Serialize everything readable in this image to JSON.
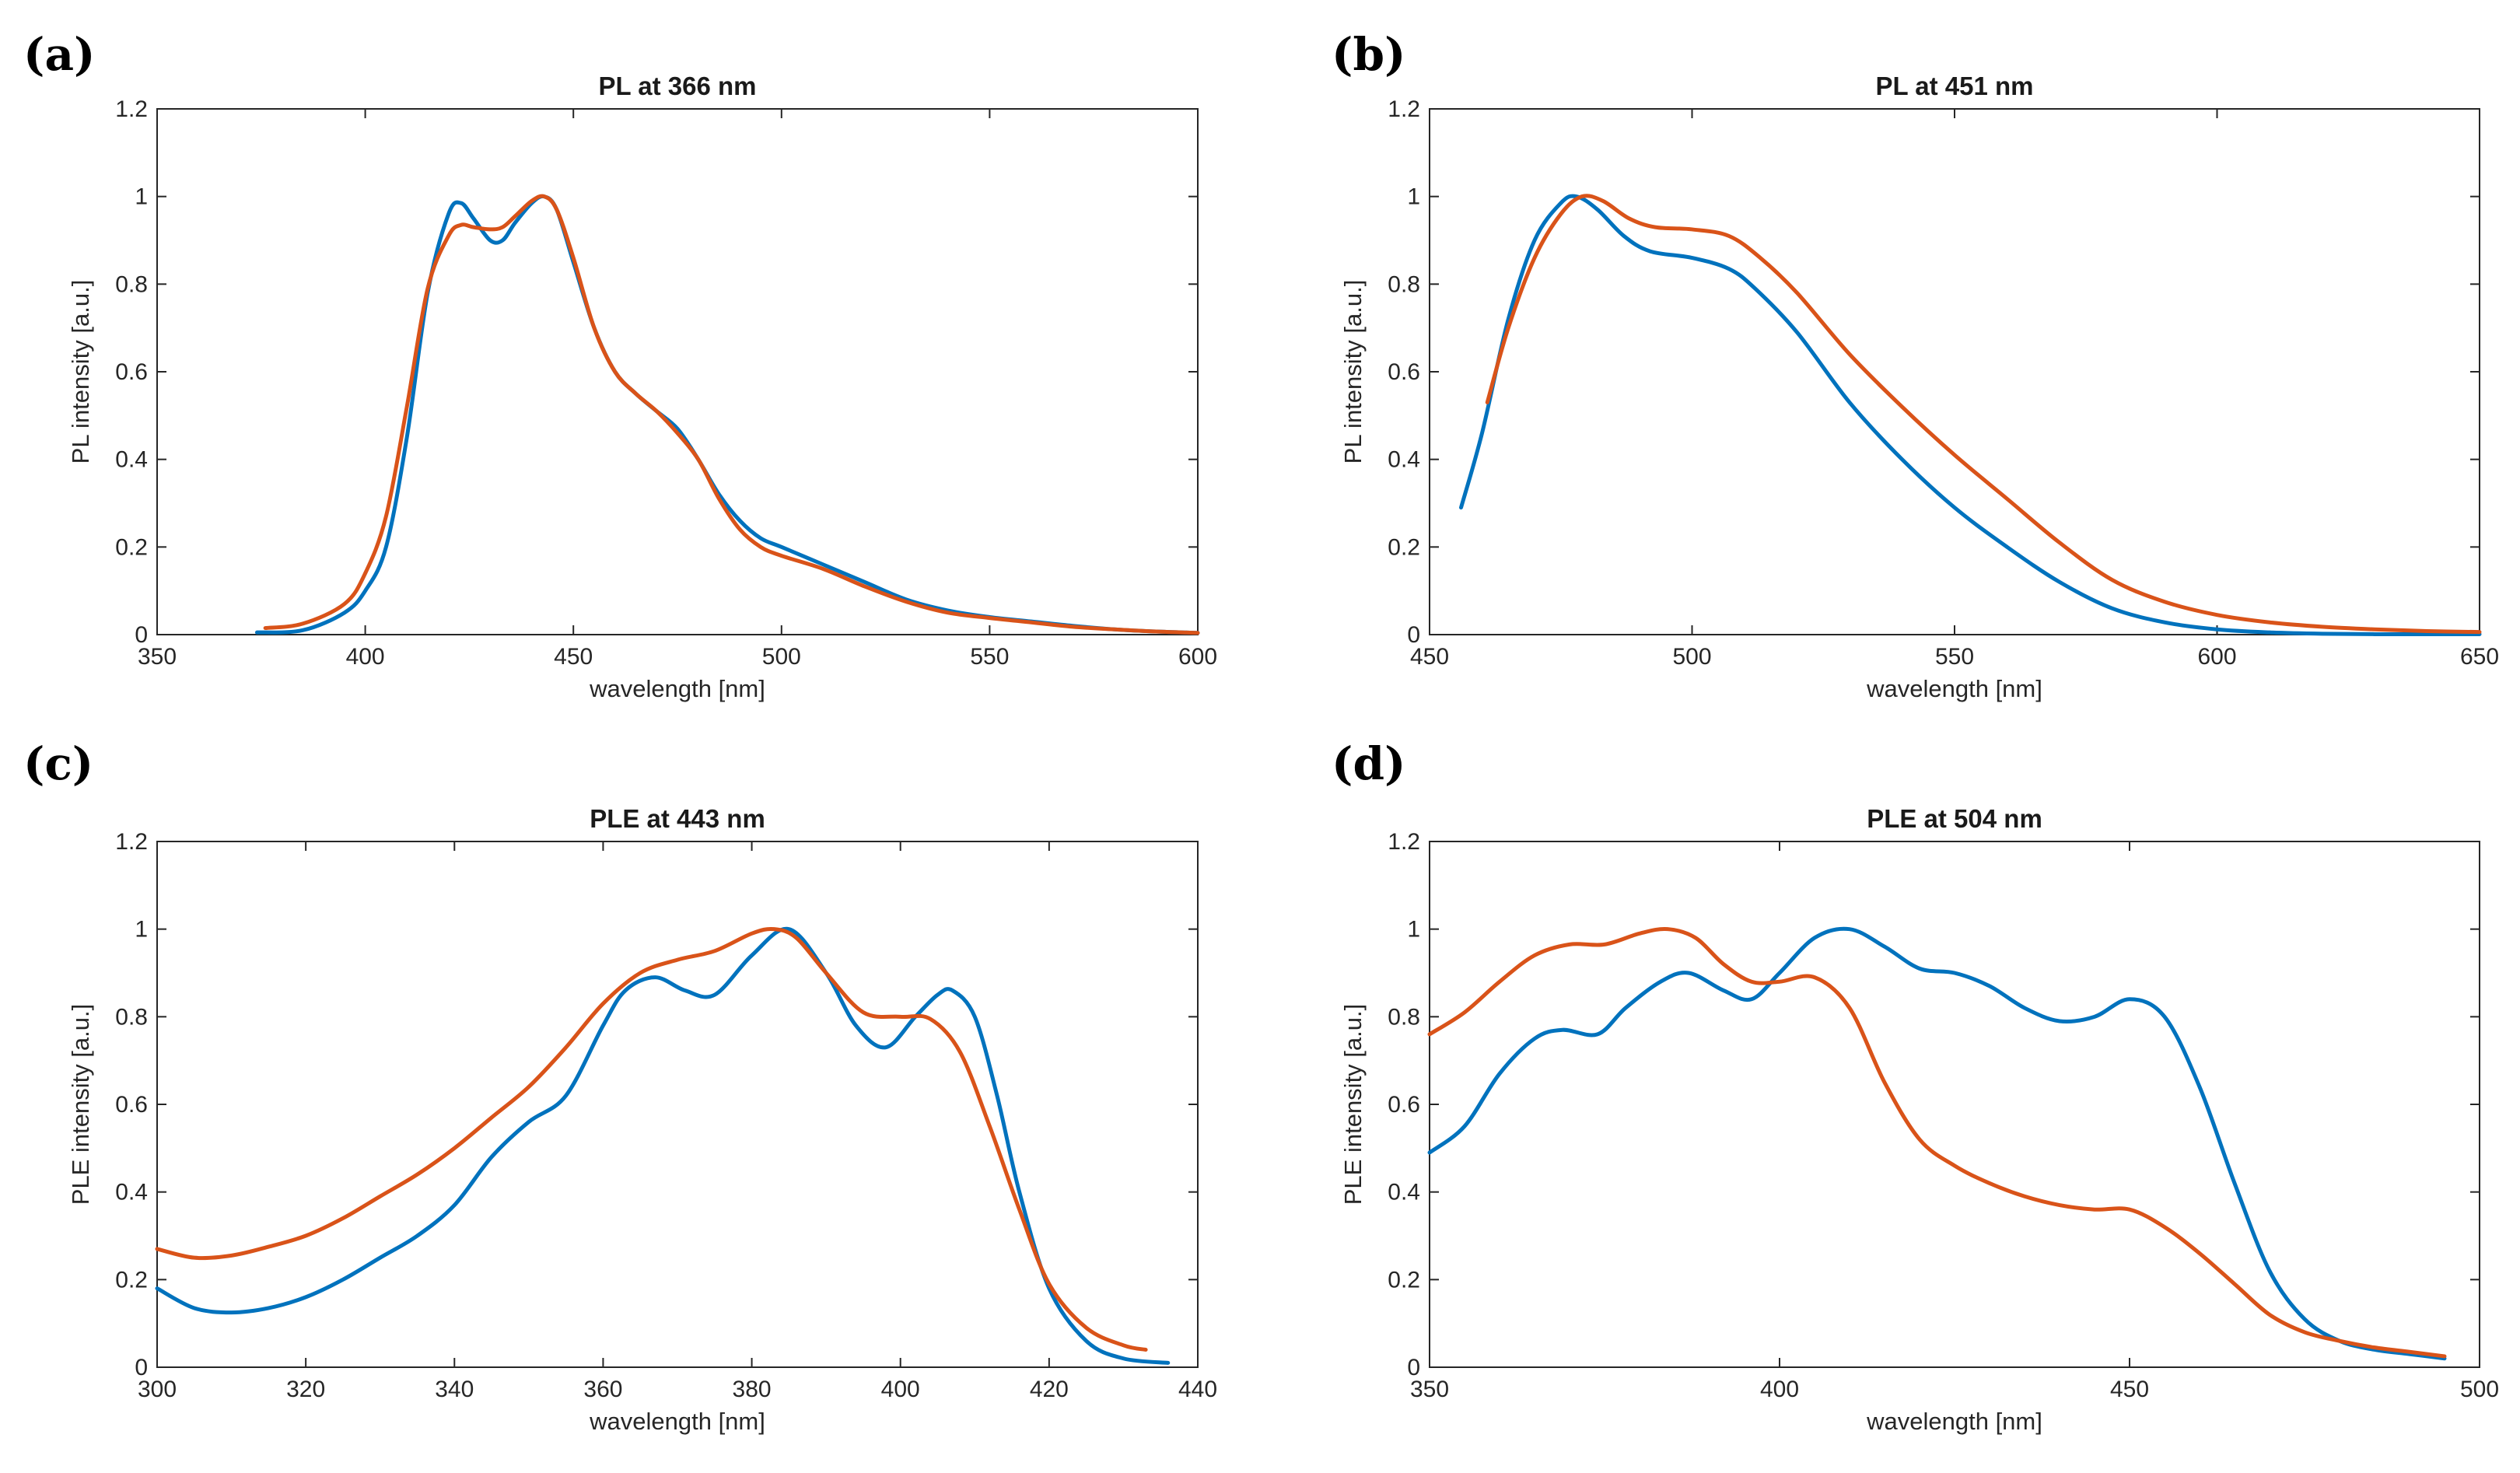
{
  "colors": {
    "blue": "#0072BD",
    "orange": "#D95319"
  },
  "chart_data": [
    {
      "type": "line",
      "panel_label": "(a)",
      "title": "PL at 366 nm",
      "xlabel": "wavelength [nm]",
      "ylabel": "PL intensity [a.u.]",
      "xlim": [
        350,
        600
      ],
      "ylim": [
        0,
        1.2
      ],
      "xticks": [
        350,
        400,
        450,
        500,
        550,
        600
      ],
      "yticks": [
        0,
        0.2,
        0.4,
        0.6,
        0.8,
        1,
        1.2
      ],
      "series": [
        {
          "name": "blue",
          "color": "#0072BD",
          "x": [
            374,
            385,
            395,
            400,
            405,
            410,
            415,
            420,
            423,
            426,
            430,
            433,
            436,
            440,
            443,
            446,
            450,
            455,
            460,
            465,
            470,
            475,
            480,
            485,
            490,
            495,
            500,
            510,
            520,
            530,
            540,
            550,
            560,
            570,
            580,
            590,
            600
          ],
          "y": [
            0.005,
            0.01,
            0.05,
            0.1,
            0.2,
            0.45,
            0.78,
            0.96,
            0.985,
            0.95,
            0.9,
            0.9,
            0.94,
            0.985,
            1.0,
            0.97,
            0.85,
            0.7,
            0.6,
            0.55,
            0.51,
            0.47,
            0.4,
            0.32,
            0.26,
            0.22,
            0.2,
            0.16,
            0.12,
            0.08,
            0.055,
            0.04,
            0.03,
            0.02,
            0.012,
            0.007,
            0.004
          ]
        },
        {
          "name": "orange",
          "color": "#D95319",
          "x": [
            376,
            385,
            395,
            400,
            405,
            410,
            415,
            420,
            423,
            426,
            430,
            433,
            436,
            440,
            443,
            446,
            450,
            455,
            460,
            465,
            470,
            475,
            480,
            485,
            490,
            495,
            500,
            510,
            520,
            530,
            540,
            550,
            560,
            570,
            580,
            590,
            600
          ],
          "y": [
            0.015,
            0.025,
            0.07,
            0.14,
            0.27,
            0.52,
            0.79,
            0.91,
            0.935,
            0.93,
            0.925,
            0.93,
            0.955,
            0.99,
            1.0,
            0.97,
            0.86,
            0.7,
            0.6,
            0.55,
            0.51,
            0.46,
            0.4,
            0.31,
            0.24,
            0.2,
            0.18,
            0.15,
            0.11,
            0.075,
            0.05,
            0.038,
            0.028,
            0.018,
            0.012,
            0.007,
            0.004
          ]
        }
      ]
    },
    {
      "type": "line",
      "panel_label": "(b)",
      "title": "PL at 451 nm",
      "xlabel": "wavelength [nm]",
      "ylabel": "PL intensity [a.u.]",
      "xlim": [
        450,
        650
      ],
      "ylim": [
        0,
        1.2
      ],
      "xticks": [
        450,
        500,
        550,
        600,
        650
      ],
      "yticks": [
        0,
        0.2,
        0.4,
        0.6,
        0.8,
        1,
        1.2
      ],
      "series": [
        {
          "name": "blue",
          "color": "#0072BD",
          "x": [
            456,
            460,
            465,
            470,
            475,
            478,
            482,
            487,
            492,
            500,
            507,
            512,
            520,
            530,
            540,
            550,
            560,
            570,
            580,
            590,
            600,
            610,
            620,
            630,
            640,
            650
          ],
          "y": [
            0.29,
            0.46,
            0.72,
            0.9,
            0.985,
            1.0,
            0.97,
            0.91,
            0.875,
            0.86,
            0.835,
            0.79,
            0.69,
            0.53,
            0.4,
            0.29,
            0.2,
            0.12,
            0.06,
            0.028,
            0.012,
            0.005,
            0.002,
            0.001,
            0.001,
            0.001
          ]
        },
        {
          "name": "orange",
          "color": "#D95319",
          "x": [
            461,
            465,
            470,
            475,
            479,
            483,
            488,
            493,
            500,
            507,
            513,
            520,
            530,
            540,
            550,
            560,
            570,
            580,
            590,
            600,
            610,
            620,
            630,
            640,
            650
          ],
          "y": [
            0.53,
            0.7,
            0.86,
            0.96,
            1.0,
            0.99,
            0.95,
            0.93,
            0.925,
            0.91,
            0.86,
            0.78,
            0.64,
            0.52,
            0.41,
            0.31,
            0.21,
            0.125,
            0.075,
            0.045,
            0.028,
            0.018,
            0.012,
            0.008,
            0.006
          ]
        }
      ]
    },
    {
      "type": "line",
      "panel_label": "(c)",
      "title": "PLE at 443 nm",
      "xlabel": "wavelength [nm]",
      "ylabel": "PLE intensity [a.u.]",
      "xlim": [
        300,
        440
      ],
      "ylim": [
        0,
        1.2
      ],
      "xticks": [
        300,
        320,
        340,
        360,
        380,
        400,
        420,
        440
      ],
      "yticks": [
        0,
        0.2,
        0.4,
        0.6,
        0.8,
        1,
        1.2
      ],
      "series": [
        {
          "name": "blue",
          "color": "#0072BD",
          "x": [
            300,
            305,
            310,
            315,
            320,
            325,
            330,
            335,
            340,
            345,
            350,
            355,
            360,
            363,
            367,
            371,
            375,
            380,
            385,
            390,
            394,
            398,
            402,
            405,
            407,
            410,
            413,
            416,
            420,
            425,
            430,
            436
          ],
          "y": [
            0.18,
            0.135,
            0.125,
            0.135,
            0.16,
            0.2,
            0.25,
            0.3,
            0.37,
            0.48,
            0.56,
            0.62,
            0.78,
            0.86,
            0.89,
            0.86,
            0.85,
            0.94,
            1.0,
            0.9,
            0.78,
            0.73,
            0.8,
            0.85,
            0.86,
            0.8,
            0.62,
            0.4,
            0.18,
            0.06,
            0.02,
            0.01
          ]
        },
        {
          "name": "orange",
          "color": "#D95319",
          "x": [
            300,
            305,
            310,
            315,
            320,
            325,
            330,
            335,
            340,
            345,
            350,
            355,
            360,
            365,
            370,
            375,
            380,
            383,
            386,
            390,
            395,
            400,
            404,
            408,
            412,
            416,
            420,
            425,
            430,
            433
          ],
          "y": [
            0.27,
            0.25,
            0.255,
            0.275,
            0.3,
            0.34,
            0.39,
            0.44,
            0.5,
            0.57,
            0.64,
            0.73,
            0.83,
            0.9,
            0.93,
            0.95,
            0.99,
            1.0,
            0.98,
            0.9,
            0.81,
            0.8,
            0.795,
            0.72,
            0.55,
            0.36,
            0.19,
            0.09,
            0.05,
            0.04
          ]
        }
      ]
    },
    {
      "type": "line",
      "panel_label": "(d)",
      "title": "PLE at 504 nm",
      "xlabel": "wavelength [nm]",
      "ylabel": "PLE intensity [a.u.]",
      "xlim": [
        350,
        500
      ],
      "ylim": [
        0,
        1.2
      ],
      "xticks": [
        350,
        400,
        450,
        500
      ],
      "yticks": [
        0,
        0.2,
        0.4,
        0.6,
        0.8,
        1,
        1.2
      ],
      "series": [
        {
          "name": "blue",
          "color": "#0072BD",
          "x": [
            350,
            355,
            360,
            365,
            369,
            374,
            378,
            383,
            387,
            392,
            396,
            400,
            405,
            410,
            415,
            420,
            425,
            430,
            435,
            440,
            445,
            450,
            455,
            460,
            465,
            470,
            475,
            480,
            485,
            490,
            495
          ],
          "y": [
            0.49,
            0.55,
            0.67,
            0.75,
            0.77,
            0.76,
            0.82,
            0.88,
            0.9,
            0.86,
            0.84,
            0.9,
            0.98,
            1.0,
            0.96,
            0.91,
            0.9,
            0.87,
            0.82,
            0.79,
            0.8,
            0.84,
            0.8,
            0.64,
            0.42,
            0.22,
            0.11,
            0.06,
            0.04,
            0.03,
            0.02
          ]
        },
        {
          "name": "orange",
          "color": "#D95319",
          "x": [
            350,
            355,
            360,
            365,
            370,
            375,
            380,
            384,
            388,
            392,
            396,
            400,
            405,
            410,
            415,
            420,
            425,
            430,
            435,
            440,
            445,
            450,
            455,
            460,
            465,
            470,
            475,
            480,
            485,
            490,
            495
          ],
          "y": [
            0.76,
            0.81,
            0.88,
            0.94,
            0.965,
            0.965,
            0.99,
            1.0,
            0.98,
            0.92,
            0.88,
            0.88,
            0.89,
            0.82,
            0.65,
            0.52,
            0.46,
            0.42,
            0.39,
            0.37,
            0.36,
            0.36,
            0.32,
            0.26,
            0.19,
            0.12,
            0.08,
            0.06,
            0.045,
            0.035,
            0.025
          ]
        }
      ]
    }
  ]
}
